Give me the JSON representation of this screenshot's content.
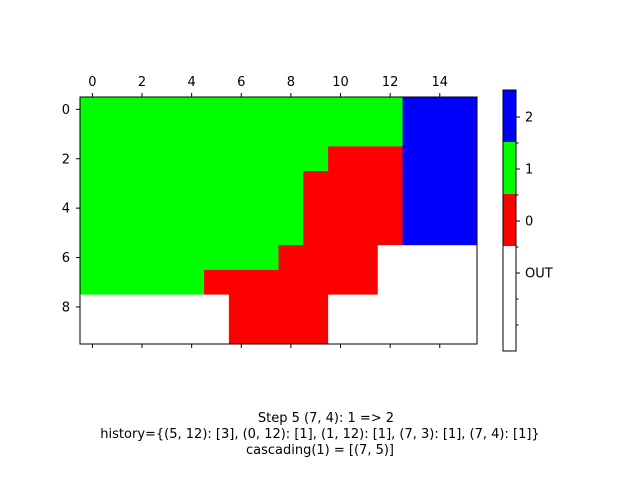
{
  "chart_data": {
    "type": "heatmap",
    "title": "",
    "xlabel": "",
    "ylabel": "",
    "grid": false,
    "x_axis_position": "top",
    "x_ticks": [
      0,
      2,
      4,
      6,
      8,
      10,
      12,
      14
    ],
    "y_ticks": [
      0,
      2,
      4,
      6,
      8
    ],
    "xlim": [
      -0.5,
      15.5
    ],
    "ylim": [
      9.5,
      -0.5
    ],
    "colormap": [
      {
        "value": "OUT",
        "color": "#ffffff"
      },
      {
        "value": 0,
        "color": "#ff0000"
      },
      {
        "value": 1,
        "color": "#00ff00"
      },
      {
        "value": 2,
        "color": "#0000ff"
      }
    ],
    "colorbar_labels": [
      "OUT",
      "0",
      "1",
      "2"
    ],
    "legend_placement": "right",
    "grid_values": [
      [
        1,
        1,
        1,
        1,
        1,
        1,
        1,
        1,
        1,
        1,
        1,
        1,
        1,
        2,
        2,
        2
      ],
      [
        1,
        1,
        1,
        1,
        1,
        1,
        1,
        1,
        1,
        1,
        1,
        1,
        1,
        2,
        2,
        2
      ],
      [
        1,
        1,
        1,
        1,
        1,
        1,
        1,
        1,
        1,
        1,
        0,
        0,
        0,
        2,
        2,
        2
      ],
      [
        1,
        1,
        1,
        1,
        1,
        1,
        1,
        1,
        1,
        0,
        0,
        0,
        0,
        2,
        2,
        2
      ],
      [
        1,
        1,
        1,
        1,
        1,
        1,
        1,
        1,
        1,
        0,
        0,
        0,
        0,
        2,
        2,
        2
      ],
      [
        1,
        1,
        1,
        1,
        1,
        1,
        1,
        1,
        1,
        0,
        0,
        0,
        0,
        2,
        2,
        2
      ],
      [
        1,
        1,
        1,
        1,
        1,
        1,
        1,
        1,
        0,
        0,
        0,
        0,
        "OUT",
        "OUT",
        "OUT",
        "OUT"
      ],
      [
        1,
        1,
        1,
        1,
        1,
        0,
        0,
        0,
        0,
        0,
        0,
        0,
        "OUT",
        "OUT",
        "OUT",
        "OUT"
      ],
      [
        "OUT",
        "OUT",
        "OUT",
        "OUT",
        "OUT",
        "OUT",
        0,
        0,
        0,
        0,
        "OUT",
        "OUT",
        "OUT",
        "OUT",
        "OUT",
        "OUT"
      ],
      [
        "OUT",
        "OUT",
        "OUT",
        "OUT",
        "OUT",
        "OUT",
        0,
        0,
        0,
        0,
        "OUT",
        "OUT",
        "OUT",
        "OUT",
        "OUT",
        "OUT"
      ]
    ]
  },
  "caption": {
    "line1": "Step 5  (7, 4): 1 => 2",
    "line2": "history={(5, 12): [3], (0, 12): [1], (1, 12): [1], (7, 3): [1], (7, 4): [1]}",
    "line3": "cascading(1) = [(7, 5)]"
  }
}
